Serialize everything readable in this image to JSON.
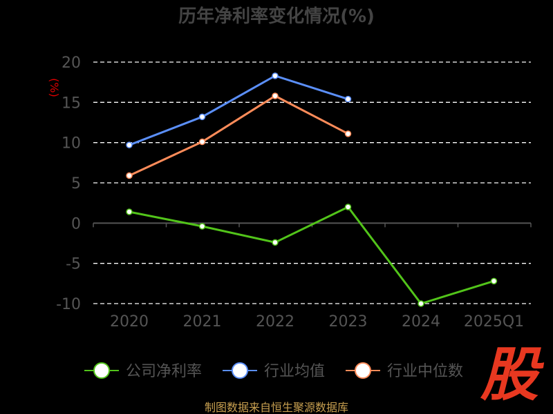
{
  "chart_data": {
    "type": "line",
    "title": "历年净利率变化情况(%)",
    "ylabel": "(%)",
    "ylim": [
      -10,
      20
    ],
    "yticks": [
      "20",
      "15",
      "10",
      "5",
      "0",
      "-5",
      "-10"
    ],
    "categories": [
      "2020",
      "2021",
      "2022",
      "2023",
      "2024",
      "2025Q1"
    ],
    "grid": true,
    "legend": "bottom",
    "series": [
      {
        "name": "公司净利率",
        "color": "#52c41a",
        "values": [
          1.4,
          -0.4,
          -2.4,
          2.0,
          -10.0,
          -7.2
        ]
      },
      {
        "name": "行业均值",
        "color": "#5b8ff9",
        "values": [
          9.7,
          13.2,
          18.3,
          15.4,
          null,
          null
        ]
      },
      {
        "name": "行业中位数",
        "color": "#ff8c5a",
        "values": [
          5.9,
          10.1,
          15.8,
          11.1,
          null,
          null
        ]
      }
    ]
  },
  "watermark": "股",
  "footer": "制图数据来自恒生聚源数据库"
}
